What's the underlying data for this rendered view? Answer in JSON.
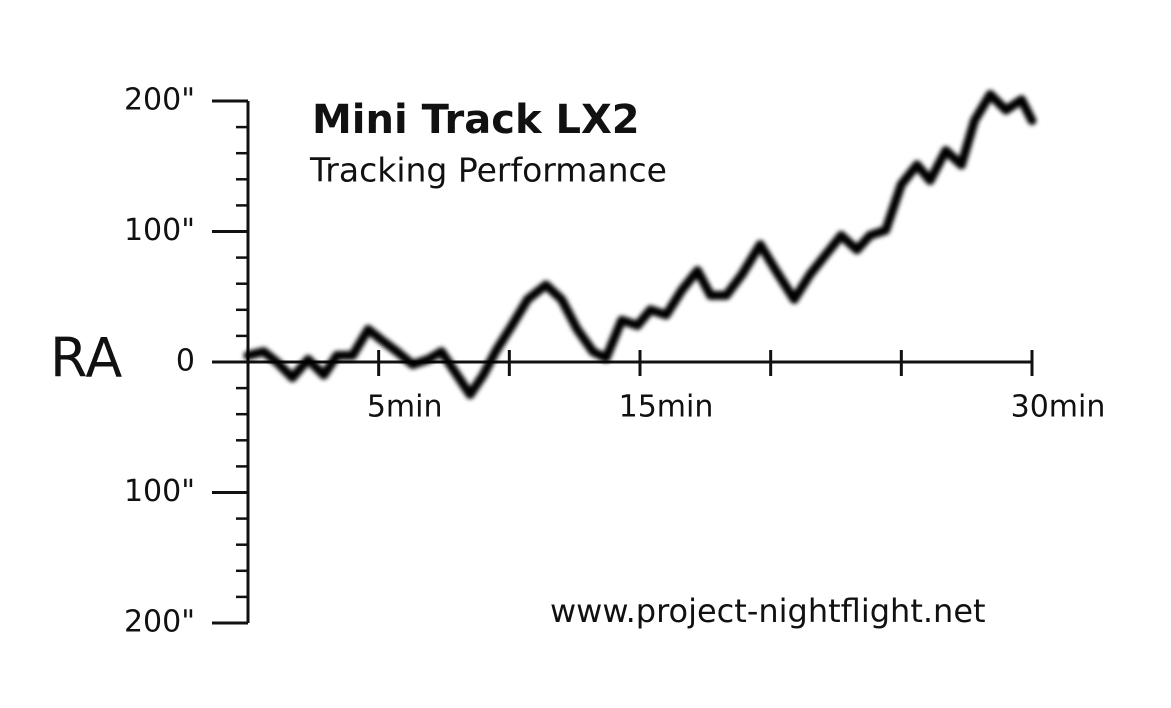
{
  "chart_data": {
    "type": "line",
    "title": "Mini Track LX2",
    "subtitle": "Tracking Performance",
    "y_label": "RA",
    "source": "www.project-nightflight.net",
    "color": "#000000",
    "x": [
      0,
      0.6,
      1.1,
      1.7,
      2.3,
      2.9,
      3.4,
      4.0,
      4.6,
      5.1,
      5.7,
      6.3,
      6.9,
      7.4,
      8.0,
      8.5,
      9.0,
      9.5,
      10.1,
      10.7,
      11.4,
      12.0,
      12.6,
      13.2,
      13.7,
      14.3,
      14.9,
      15.4,
      16.0,
      16.6,
      17.2,
      17.7,
      18.3,
      18.9,
      19.6,
      20.2,
      20.9,
      21.5,
      22.1,
      22.7,
      23.3,
      23.8,
      24.4,
      25.0,
      25.6,
      26.1,
      26.7,
      27.3,
      27.8,
      28.4,
      29.0,
      29.6,
      30.0
    ],
    "values": [
      5,
      8,
      0,
      -12,
      2,
      -10,
      5,
      5,
      25,
      17,
      8,
      -2,
      2,
      8,
      -10,
      -25,
      -10,
      9,
      28,
      48,
      59,
      48,
      25,
      8,
      3,
      32,
      28,
      40,
      36,
      55,
      70,
      51,
      51,
      67,
      90,
      70,
      48,
      67,
      82,
      97,
      86,
      97,
      101,
      136,
      151,
      139,
      162,
      151,
      185,
      205,
      193,
      201,
      185
    ],
    "xlim": [
      0,
      30
    ],
    "xticks": [
      {
        "value": 5,
        "label": "5min"
      },
      {
        "value": 15,
        "label": "15min"
      },
      {
        "value": 30,
        "label": "30min"
      }
    ],
    "xminor_ticks": [
      10,
      20,
      25
    ],
    "ylim": [
      -200,
      200
    ],
    "yticks": [
      {
        "value": 200,
        "label": "200\""
      },
      {
        "value": 100,
        "label": "100\""
      },
      0,
      {
        "value": -100,
        "label": "100\""
      },
      {
        "value": -200,
        "label": "200\""
      }
    ],
    "yminor_ticks": [
      -180,
      -160,
      -140,
      -120,
      -80,
      -60,
      -40,
      -20,
      20,
      40,
      60,
      80,
      120,
      140,
      160,
      180
    ]
  }
}
